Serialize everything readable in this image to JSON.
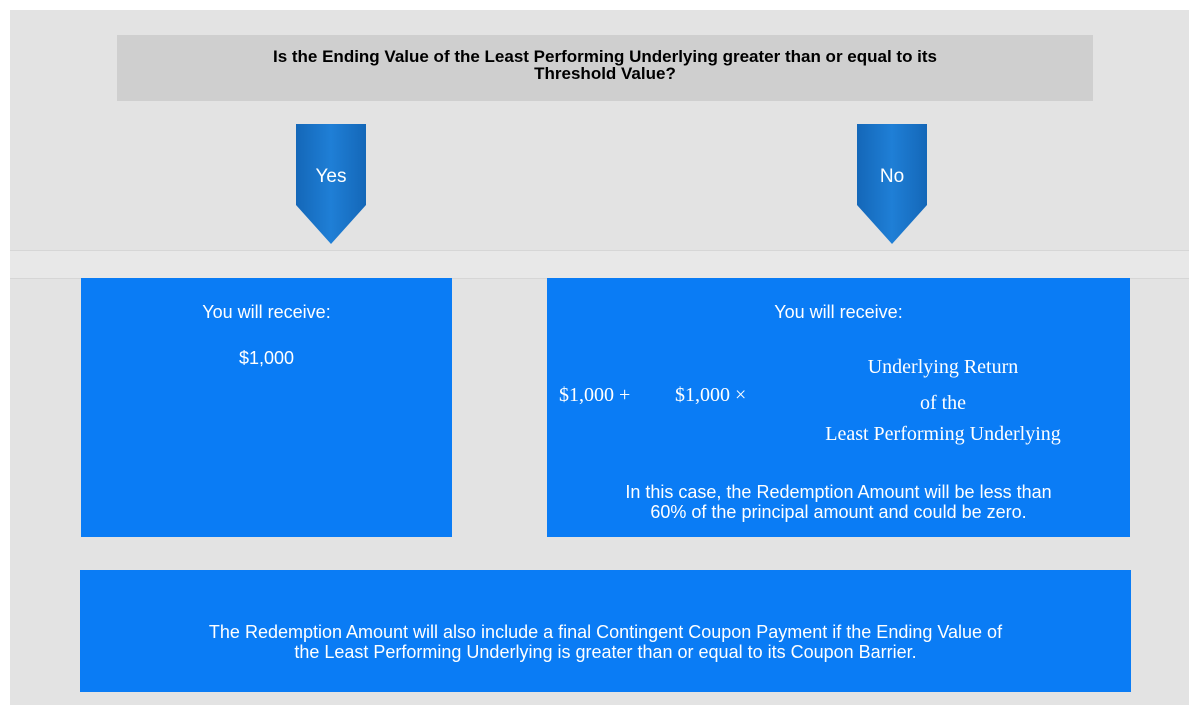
{
  "question": {
    "lines": [
      "Is the Ending Value of the Least Performing Underlying greater than or equal to its",
      "Threshold Value?"
    ]
  },
  "branches": {
    "yes": "Yes",
    "no": "No"
  },
  "left": {
    "heading": "You will receive:",
    "amount": "$1,000"
  },
  "right": {
    "heading": "You will receive:",
    "formula": {
      "base": "$1,000 +",
      "multiplier": "$1,000 ×",
      "fraction": [
        "Underlying Return",
        "of the",
        "Least Performing Underlying"
      ]
    },
    "note": [
      "In this case, the Redemption Amount will be less than",
      "60% of the principal amount and could be zero."
    ]
  },
  "footer": {
    "lines": [
      "The Redemption Amount will also include a final Contingent Coupon Payment if the Ending Value of",
      "the Least Performing Underlying is greater than or equal to its Coupon Barrier."
    ]
  }
}
